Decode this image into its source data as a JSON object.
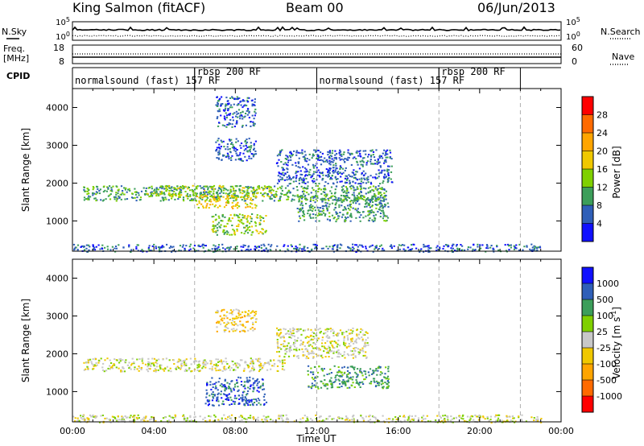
{
  "header": {
    "station": "King Salmon (fitACF)",
    "beam": "Beam 00",
    "date": "06/Jun/2013"
  },
  "side_labels": {
    "nsky": "N.Sky",
    "freq": "Freq.",
    "freq_unit": "[MHz]",
    "cpid": "CPID",
    "nsearch": "N.Search",
    "nave": "Nave"
  },
  "chart_data": [
    {
      "type": "line",
      "panel": "noise",
      "left_ticks": [
        "10^5",
        "10^0"
      ],
      "right_ticks": [
        "10^5",
        "10^0"
      ],
      "series": [
        {
          "name": "N.Sky",
          "style": "solid"
        },
        {
          "name": "N.Search",
          "style": "dotted"
        }
      ]
    },
    {
      "type": "line",
      "panel": "frequency",
      "left_ticks": [
        "18",
        "8"
      ],
      "right_ticks": [
        "60",
        "0"
      ],
      "series": [
        {
          "name": "Freq.",
          "style": "solid"
        },
        {
          "name": "Nave",
          "style": "dotted"
        }
      ]
    },
    {
      "type": "table",
      "panel": "cpid",
      "segments": [
        {
          "label": "normalsound (fast) 157 RF",
          "start_hour": 0,
          "end_hour": 6
        },
        {
          "label": "rbsp 200 RF",
          "start_hour": 6,
          "end_hour": 12
        },
        {
          "label": "normalsound (fast) 157 RF",
          "start_hour": 12,
          "end_hour": 18
        },
        {
          "label": "rbsp 200 RF",
          "start_hour": 18,
          "end_hour": 22
        }
      ]
    },
    {
      "type": "heatmap",
      "panel": "power",
      "ylabel": "Slant Range [km]",
      "yticks": [
        1000,
        2000,
        3000,
        4000
      ],
      "ylim": [
        200,
        4500
      ],
      "xlim": [
        0,
        24
      ],
      "colorbar": {
        "label": "Power [dB]",
        "ticks": [
          "28",
          "24",
          "20",
          "16",
          "12",
          "8",
          "4"
        ],
        "colors": [
          "#ff0000",
          "#ff6a00",
          "#ffa500",
          "#f0c800",
          "#7fd000",
          "#3c9e5a",
          "#2f5fb8",
          "#1010ff"
        ]
      },
      "echo_regions": [
        {
          "t0": 0.5,
          "t1": 15.5,
          "r0": 1550,
          "r1": 1950,
          "level": 2
        },
        {
          "t0": 3.5,
          "t1": 10.0,
          "r0": 1650,
          "r1": 1950,
          "level": 3
        },
        {
          "t0": 6.0,
          "t1": 9.0,
          "r0": 1350,
          "r1": 1700,
          "level": 4
        },
        {
          "t0": 6.8,
          "t1": 9.5,
          "r0": 650,
          "r1": 1200,
          "level": 3
        },
        {
          "t0": 7.0,
          "t1": 9.0,
          "r0": 2600,
          "r1": 3200,
          "level": 1
        },
        {
          "t0": 7.0,
          "t1": 9.0,
          "r0": 3500,
          "r1": 4300,
          "level": 1
        },
        {
          "t0": 10.0,
          "t1": 15.7,
          "r0": 2000,
          "r1": 2900,
          "level": 1
        },
        {
          "t0": 11.0,
          "t1": 15.5,
          "r0": 1000,
          "r1": 1700,
          "level": 2
        },
        {
          "t0": 0.0,
          "t1": 23.0,
          "r0": 200,
          "r1": 400,
          "level": 1
        }
      ]
    },
    {
      "type": "heatmap",
      "panel": "velocity",
      "ylabel": "Slant Range [km]",
      "xlabel": "Time UT",
      "xticks": [
        "00:00",
        "04:00",
        "08:00",
        "12:00",
        "16:00",
        "20:00",
        "00:00"
      ],
      "yticks": [
        1000,
        2000,
        3000,
        4000
      ],
      "ylim": [
        200,
        4500
      ],
      "xlim": [
        0,
        24
      ],
      "colorbar": {
        "label": "Velocity [m s",
        "label_sup": "-1",
        "label_end": "]",
        "ticks": [
          "1000",
          "500",
          "100",
          "25",
          "-25",
          "-100",
          "-500",
          "-1000"
        ],
        "colors": [
          "#1010ff",
          "#2f5fb8",
          "#3c9e5a",
          "#7fd000",
          "#c8c8c8",
          "#f0c800",
          "#ffa500",
          "#ff6a00",
          "#ff0000"
        ]
      },
      "echo_regions": [
        {
          "t0": 0.5,
          "t1": 10.5,
          "r0": 1550,
          "r1": 1900,
          "level": 4
        },
        {
          "t0": 10.0,
          "t1": 14.5,
          "r0": 1900,
          "r1": 2700,
          "level": 4
        },
        {
          "t0": 6.5,
          "t1": 9.5,
          "r0": 650,
          "r1": 1400,
          "level": 7
        },
        {
          "t0": 11.5,
          "t1": 15.5,
          "r0": 1100,
          "r1": 1700,
          "level": 6
        },
        {
          "t0": 7.0,
          "t1": 9.0,
          "r0": 2600,
          "r1": 3200,
          "level": 3
        },
        {
          "t0": 0.0,
          "t1": 23.0,
          "r0": 200,
          "r1": 400,
          "level": 4
        }
      ]
    }
  ]
}
